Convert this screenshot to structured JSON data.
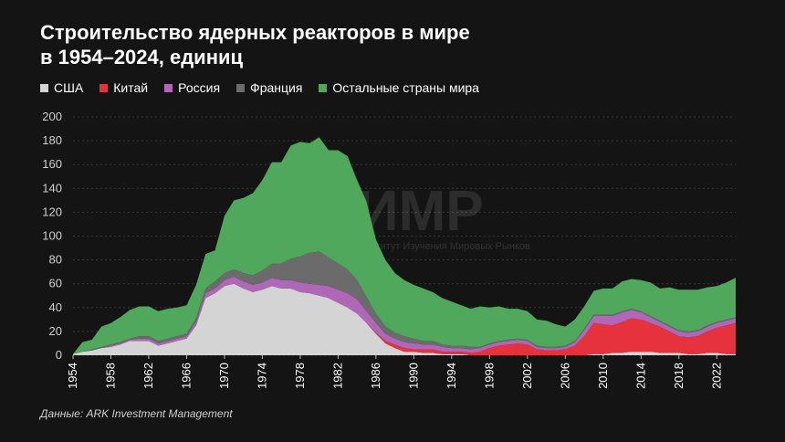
{
  "header": {
    "title_line1": "Строительство ядерных реакторов в мире",
    "title_line2": "в 1954–2024, единиц"
  },
  "source": "Данные: ARK Investment Management",
  "watermark": {
    "logo": "ИМР",
    "subtitle": "Институт Изучения Мировых Рынков"
  },
  "colors": {
    "background": "#141414",
    "usa": "#d4d4d4",
    "china": "#e5323c",
    "russia": "#b067b8",
    "france": "#6b6b6b",
    "others": "#4fa85c"
  },
  "chart_data": {
    "type": "area",
    "stacked": true,
    "title": "Строительство ядерных реакторов в мире в 1954–2024, единиц",
    "xlabel": "",
    "ylabel": "",
    "ylim": [
      0,
      200
    ],
    "yticks": [
      "0",
      "20",
      "40",
      "60",
      "80",
      "100",
      "120",
      "140",
      "160",
      "180",
      "200"
    ],
    "xticks": [
      "1954",
      "1958",
      "1962",
      "1966",
      "1970",
      "1974",
      "1978",
      "1982",
      "1986",
      "1990",
      "1994",
      "1998",
      "2002",
      "2006",
      "2010",
      "2014",
      "2018",
      "2022"
    ],
    "grid": true,
    "legend_position": "top-left",
    "x": [
      1954,
      1955,
      1956,
      1957,
      1958,
      1959,
      1960,
      1961,
      1962,
      1963,
      1964,
      1965,
      1966,
      1967,
      1968,
      1969,
      1970,
      1971,
      1972,
      1973,
      1974,
      1975,
      1976,
      1977,
      1978,
      1979,
      1980,
      1981,
      1982,
      1983,
      1984,
      1985,
      1986,
      1987,
      1988,
      1989,
      1990,
      1991,
      1992,
      1993,
      1994,
      1995,
      1996,
      1997,
      1998,
      1999,
      2000,
      2001,
      2002,
      2003,
      2004,
      2005,
      2006,
      2007,
      2008,
      2009,
      2010,
      2011,
      2012,
      2013,
      2014,
      2015,
      2016,
      2017,
      2018,
      2019,
      2020,
      2021,
      2022,
      2023,
      2024
    ],
    "series": [
      {
        "name": "США",
        "key": "usa",
        "values": [
          1,
          3,
          4,
          6,
          7,
          9,
          12,
          12,
          12,
          8,
          10,
          12,
          14,
          25,
          48,
          52,
          58,
          60,
          56,
          53,
          55,
          58,
          56,
          56,
          53,
          52,
          50,
          48,
          44,
          40,
          35,
          27,
          18,
          10,
          6,
          3,
          3,
          2,
          2,
          1,
          1,
          1,
          0,
          0,
          0,
          0,
          0,
          0,
          0,
          0,
          0,
          0,
          0,
          0,
          0,
          1,
          1,
          2,
          2,
          3,
          3,
          3,
          2,
          2,
          2,
          1,
          1,
          2,
          2,
          1,
          1
        ]
      },
      {
        "name": "Китай",
        "key": "china",
        "values": [
          0,
          0,
          0,
          0,
          0,
          0,
          0,
          0,
          0,
          0,
          0,
          0,
          0,
          0,
          0,
          0,
          0,
          0,
          0,
          0,
          0,
          0,
          0,
          0,
          0,
          0,
          0,
          0,
          0,
          0,
          0,
          0,
          1,
          2,
          3,
          3,
          2,
          3,
          3,
          2,
          2,
          2,
          2,
          3,
          6,
          8,
          9,
          10,
          9,
          5,
          4,
          4,
          5,
          8,
          16,
          26,
          25,
          23,
          26,
          28,
          27,
          24,
          22,
          18,
          14,
          14,
          15,
          18,
          21,
          24,
          26
        ]
      },
      {
        "name": "Россия",
        "key": "russia",
        "values": [
          0,
          0,
          0,
          0,
          1,
          1,
          1,
          2,
          2,
          2,
          2,
          2,
          2,
          3,
          4,
          4,
          5,
          6,
          6,
          6,
          6,
          7,
          7,
          7,
          8,
          8,
          9,
          10,
          11,
          12,
          12,
          10,
          8,
          6,
          5,
          5,
          5,
          4,
          4,
          4,
          3,
          3,
          3,
          3,
          3,
          3,
          3,
          3,
          3,
          2,
          2,
          2,
          2,
          3,
          5,
          6,
          7,
          8,
          8,
          7,
          6,
          5,
          4,
          4,
          4,
          4,
          4,
          4,
          4,
          4,
          4
        ]
      },
      {
        "name": "Франция",
        "key": "france",
        "values": [
          0,
          0,
          1,
          1,
          1,
          1,
          1,
          2,
          2,
          2,
          2,
          2,
          2,
          3,
          4,
          6,
          6,
          6,
          7,
          8,
          10,
          12,
          14,
          18,
          22,
          26,
          28,
          24,
          22,
          20,
          16,
          12,
          8,
          6,
          5,
          5,
          4,
          3,
          3,
          2,
          2,
          2,
          2,
          1,
          1,
          1,
          1,
          1,
          1,
          1,
          1,
          1,
          1,
          1,
          1,
          1,
          1,
          1,
          1,
          1,
          1,
          1,
          1,
          1,
          1,
          1,
          1,
          1,
          1,
          1,
          1
        ]
      },
      {
        "name": "Остальные страны мира",
        "key": "others",
        "values": [
          0,
          8,
          8,
          17,
          18,
          21,
          24,
          25,
          25,
          25,
          25,
          24,
          24,
          28,
          29,
          26,
          48,
          58,
          63,
          69,
          76,
          85,
          85,
          95,
          96,
          92,
          96,
          90,
          95,
          95,
          84,
          80,
          62,
          56,
          50,
          47,
          45,
          44,
          41,
          39,
          37,
          34,
          32,
          34,
          30,
          29,
          26,
          25,
          24,
          22,
          22,
          19,
          16,
          18,
          19,
          20,
          22,
          22,
          25,
          25,
          26,
          28,
          27,
          32,
          34,
          35,
          34,
          32,
          30,
          31,
          33
        ]
      }
    ]
  }
}
